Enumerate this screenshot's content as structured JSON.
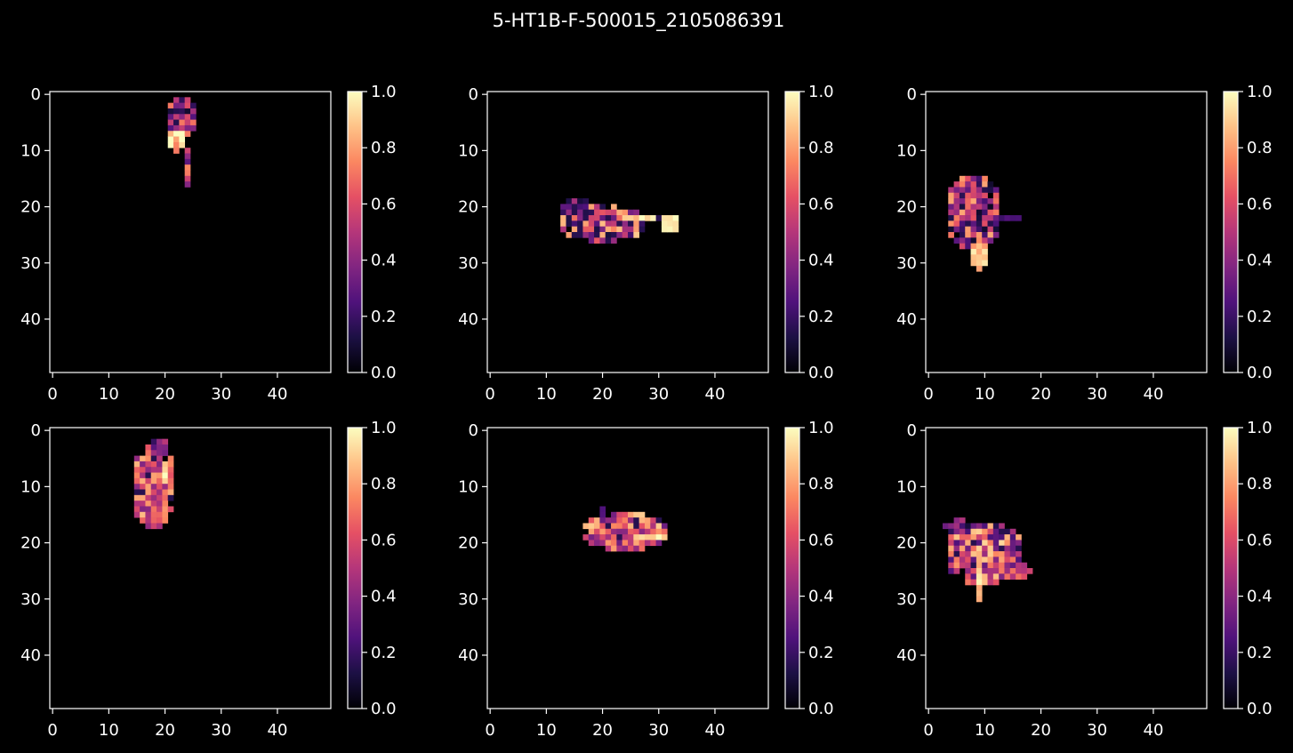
{
  "figure": {
    "title": "5-HT1B-F-500015_2105086391",
    "background": "#000000",
    "foreground": "#ffffff"
  },
  "colormap": {
    "name": "magma",
    "stops": [
      "#000004",
      "#1c1044",
      "#4f127b",
      "#812581",
      "#b5367a",
      "#e55064",
      "#fb8761",
      "#fec287",
      "#fcfdbf"
    ]
  },
  "chart_data": [
    {
      "type": "heatmap",
      "panel": "row1-col1",
      "grid_size": [
        50,
        50
      ],
      "xlim": [
        0,
        49
      ],
      "ylim": [
        0,
        49
      ],
      "y_inverted": true,
      "xticks": [
        0,
        10,
        20,
        30,
        40
      ],
      "yticks": [
        0,
        10,
        20,
        30,
        40
      ],
      "colorbar": {
        "range": [
          0,
          1
        ],
        "ticks": [
          "0.0",
          "0.2",
          "0.4",
          "0.6",
          "0.8",
          "1.0"
        ]
      },
      "clusters": [
        {
          "cx": 23,
          "cy": 4,
          "rx": 3.0,
          "ry": 3.5,
          "level": 0.42,
          "spread": 0.35
        },
        {
          "cx": 22,
          "cy": 8,
          "rx": 1.6,
          "ry": 2.4,
          "level": 0.9,
          "spread": 0.2
        },
        {
          "cx": 24,
          "cy": 13,
          "rx": 0.8,
          "ry": 4.5,
          "level": 0.5,
          "spread": 0.3
        }
      ],
      "seed": 11
    },
    {
      "type": "heatmap",
      "panel": "row1-col2",
      "grid_size": [
        50,
        50
      ],
      "xlim": [
        0,
        49
      ],
      "ylim": [
        0,
        49
      ],
      "y_inverted": true,
      "xticks": [
        0,
        10,
        20,
        30,
        40
      ],
      "yticks": [
        0,
        10,
        20,
        30,
        40
      ],
      "colorbar": {
        "range": [
          0,
          1
        ],
        "ticks": [
          "0.0",
          "0.2",
          "0.4",
          "0.6",
          "0.8",
          "1.0"
        ]
      },
      "clusters": [
        {
          "cx": 20,
          "cy": 23,
          "rx": 8.0,
          "ry": 3.2,
          "level": 0.5,
          "spread": 0.4
        },
        {
          "cx": 26,
          "cy": 22,
          "rx": 5.0,
          "ry": 0.9,
          "level": 0.92,
          "spread": 0.15
        },
        {
          "cx": 32,
          "cy": 23,
          "rx": 1.4,
          "ry": 1.6,
          "level": 0.98,
          "spread": 0.05
        },
        {
          "cx": 15,
          "cy": 20,
          "rx": 3.0,
          "ry": 1.5,
          "level": 0.28,
          "spread": 0.2
        }
      ],
      "seed": 23
    },
    {
      "type": "heatmap",
      "panel": "row1-col3",
      "grid_size": [
        50,
        50
      ],
      "xlim": [
        0,
        49
      ],
      "ylim": [
        0,
        49
      ],
      "y_inverted": true,
      "xticks": [
        0,
        10,
        20,
        30,
        40
      ],
      "yticks": [
        0,
        10,
        20,
        30,
        40
      ],
      "colorbar": {
        "range": [
          0,
          1
        ],
        "ticks": [
          "0.0",
          "0.2",
          "0.4",
          "0.6",
          "0.8",
          "1.0"
        ]
      },
      "clusters": [
        {
          "cx": 8,
          "cy": 21,
          "rx": 5.0,
          "ry": 7.0,
          "level": 0.45,
          "spread": 0.4
        },
        {
          "cx": 9,
          "cy": 27,
          "rx": 1.2,
          "ry": 5.5,
          "level": 0.9,
          "spread": 0.15
        },
        {
          "cx": 14,
          "cy": 22,
          "rx": 3.0,
          "ry": 1.0,
          "level": 0.35,
          "spread": 0.2
        }
      ],
      "seed": 37
    },
    {
      "type": "heatmap",
      "panel": "row2-col1",
      "grid_size": [
        50,
        50
      ],
      "xlim": [
        0,
        49
      ],
      "ylim": [
        0,
        49
      ],
      "y_inverted": true,
      "xticks": [
        0,
        10,
        20,
        30,
        40
      ],
      "yticks": [
        0,
        10,
        20,
        30,
        40
      ],
      "colorbar": {
        "range": [
          0,
          1
        ],
        "ticks": [
          "0.0",
          "0.2",
          "0.4",
          "0.6",
          "0.8",
          "1.0"
        ]
      },
      "clusters": [
        {
          "cx": 18,
          "cy": 10,
          "rx": 4.0,
          "ry": 8.0,
          "level": 0.62,
          "spread": 0.25
        },
        {
          "cx": 20,
          "cy": 8,
          "rx": 1.0,
          "ry": 3.0,
          "level": 0.95,
          "spread": 0.08
        },
        {
          "cx": 19,
          "cy": 3,
          "rx": 1.5,
          "ry": 1.8,
          "level": 0.35,
          "spread": 0.2
        }
      ],
      "seed": 41
    },
    {
      "type": "heatmap",
      "panel": "row2-col2",
      "grid_size": [
        50,
        50
      ],
      "xlim": [
        0,
        49
      ],
      "ylim": [
        0,
        49
      ],
      "y_inverted": true,
      "xticks": [
        0,
        10,
        20,
        30,
        40
      ],
      "yticks": [
        0,
        10,
        20,
        30,
        40
      ],
      "colorbar": {
        "range": [
          0,
          1
        ],
        "ticks": [
          "0.0",
          "0.2",
          "0.4",
          "0.6",
          "0.8",
          "1.0"
        ]
      },
      "clusters": [
        {
          "cx": 24,
          "cy": 18,
          "rx": 7.5,
          "ry": 3.5,
          "level": 0.6,
          "spread": 0.3
        },
        {
          "cx": 27,
          "cy": 19,
          "rx": 5.0,
          "ry": 0.8,
          "level": 0.95,
          "spread": 0.08
        },
        {
          "cx": 20,
          "cy": 14,
          "rx": 1.0,
          "ry": 1.5,
          "level": 0.4,
          "spread": 0.2
        }
      ],
      "seed": 53
    },
    {
      "type": "heatmap",
      "panel": "row2-col3",
      "grid_size": [
        50,
        50
      ],
      "xlim": [
        0,
        49
      ],
      "ylim": [
        0,
        49
      ],
      "y_inverted": true,
      "xticks": [
        0,
        10,
        20,
        30,
        40
      ],
      "yticks": [
        0,
        10,
        20,
        30,
        40
      ],
      "colorbar": {
        "range": [
          0,
          1
        ],
        "ticks": [
          "0.0",
          "0.2",
          "0.4",
          "0.6",
          "0.8",
          "1.0"
        ]
      },
      "clusters": [
        {
          "cx": 10,
          "cy": 22,
          "rx": 7.0,
          "ry": 6.0,
          "level": 0.58,
          "spread": 0.35
        },
        {
          "cx": 9,
          "cy": 25,
          "rx": 1.0,
          "ry": 5.5,
          "level": 0.92,
          "spread": 0.1
        },
        {
          "cx": 16,
          "cy": 25,
          "rx": 2.5,
          "ry": 1.2,
          "level": 0.6,
          "spread": 0.15
        },
        {
          "cx": 5,
          "cy": 17,
          "rx": 2.5,
          "ry": 1.5,
          "level": 0.3,
          "spread": 0.2
        }
      ],
      "seed": 67
    }
  ]
}
